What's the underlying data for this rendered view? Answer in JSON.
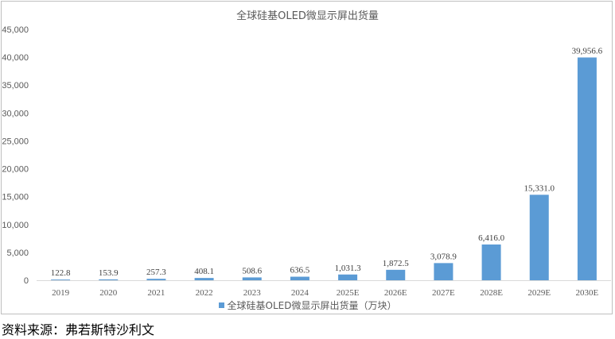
{
  "chart_data": {
    "type": "bar",
    "title": "全球硅基OLED微显示屏出货量",
    "categories": [
      "2019",
      "2020",
      "2021",
      "2022",
      "2023",
      "2024",
      "2025E",
      "2026E",
      "2027E",
      "2028E",
      "2029E",
      "2030E"
    ],
    "series": [
      {
        "name": "全球硅基OLED微显示屏出货量（万块）",
        "values": [
          122.8,
          153.9,
          257.3,
          408.1,
          508.6,
          636.5,
          1031.3,
          1872.5,
          3078.9,
          6416.0,
          15331.0,
          39956.6
        ],
        "data_labels": [
          "122.8",
          "153.9",
          "257.3",
          "408.1",
          "508.6",
          "636.5",
          "1,031.3",
          "1,872.5",
          "3,078.9",
          "6,416.0",
          "15,331.0",
          "39,956.6"
        ],
        "color": "#5b9bd5"
      }
    ],
    "y_ticks": [
      "0",
      "5,000",
      "10,000",
      "15,000",
      "20,000",
      "25,000",
      "30,000",
      "35,000",
      "40,000",
      "45,000"
    ],
    "ylim": [
      0,
      45000
    ],
    "xlabel": "",
    "ylabel": "",
    "grid": false,
    "legend_position": "bottom"
  },
  "source": "资料来源：弗若斯特沙利文",
  "colors": {
    "bar": "#5b9bd5",
    "axis": "#d9d9d9",
    "text": "#595959"
  }
}
